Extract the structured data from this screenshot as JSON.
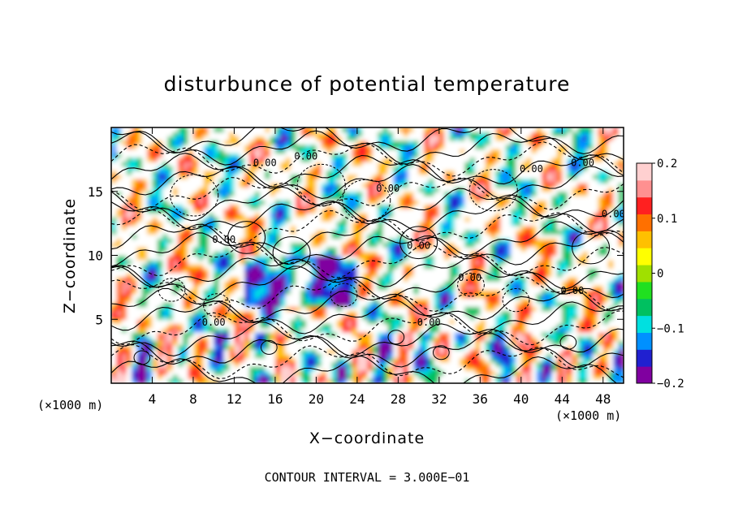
{
  "chart_data": {
    "type": "heatmap",
    "title": "disturbunce of potential temperature",
    "xlabel": "X−coordinate",
    "ylabel": "Z−coordinate",
    "x_unit": "(×1000 m)",
    "y_unit": "(×1000 m)",
    "xlim": [
      0,
      50
    ],
    "ylim": [
      0,
      20
    ],
    "x_ticks": [
      4,
      8,
      12,
      16,
      20,
      24,
      28,
      32,
      36,
      40,
      44,
      48
    ],
    "y_ticks": [
      5,
      10,
      15
    ],
    "footer": "CONTOUR INTERVAL = 3.000E−01",
    "colorbar": {
      "range": [
        -0.2,
        0.2
      ],
      "tick_labels": [
        "0.2",
        "0.1",
        "0",
        "−0.1",
        "−0.2"
      ],
      "tick_values": [
        0.2,
        0.1,
        0,
        -0.1,
        -0.2
      ],
      "colors": [
        "#8000a0",
        "#2020d0",
        "#0090ff",
        "#00e0e0",
        "#00c060",
        "#20e020",
        "#a0e000",
        "#ffff00",
        "#ffc000",
        "#ff7000",
        "#ff2020",
        "#ff9090",
        "#ffd0d0"
      ]
    },
    "contour_interval": 0.3,
    "contour_labels": [
      "0.00"
    ],
    "grid": false
  }
}
